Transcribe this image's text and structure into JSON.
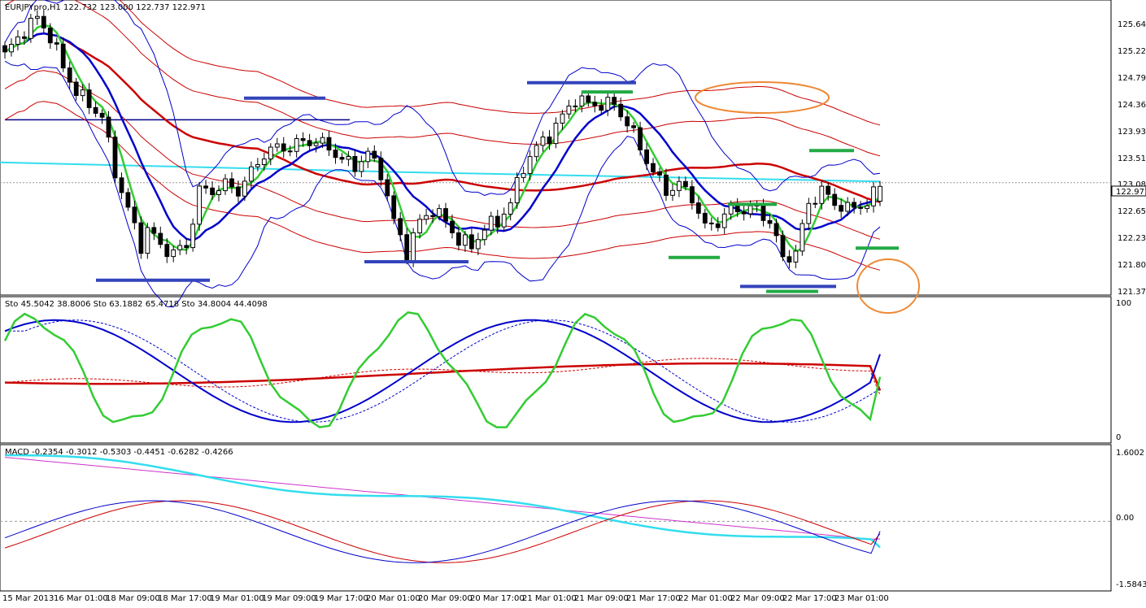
{
  "window": {
    "colors": {
      "background": "#ffffff",
      "frame": "#000000",
      "up_candle": "#ffffff",
      "down_candle": "#000000"
    }
  },
  "main_panel": {
    "label": "EURJPYpro,H1  122.732 123.000 122.737 122.971",
    "price_label": "122.971",
    "price_ticks": [
      "125.640",
      "125.220",
      "124.790",
      "124.360",
      "123.930",
      "123.510",
      "123.080",
      "122.650",
      "122.230",
      "121.800",
      "121.370"
    ],
    "colors": {
      "bb_thin": "#0000cc",
      "ma_thick_blue": "#0000cc",
      "ma_thick_red": "#cc0000",
      "ma_green": "#33cc33",
      "env_red": "#cc0000",
      "cyan_line": "#33ddee",
      "res_bar": "#3344bb",
      "sup_bar": "#22aa44",
      "annot": "#ee8833"
    }
  },
  "stoch_panel": {
    "label": "Sto 45.5042 38.8006  Sto 63.1882 65.4718  Sto 34.8004 44.4098",
    "ticks": [
      "100",
      "0"
    ]
  },
  "macd_panel": {
    "label": "MACD -0.2354 -0.3012 -0.5303 -0.4451 -0.6282 -0.4266",
    "ticks": [
      "1.6002",
      "0.00",
      "-1.5843"
    ]
  },
  "time_axis": {
    "labels": [
      "15 Mar 2013",
      "16 Mar 01:00",
      "18 Mar 09:00",
      "18 Mar 17:00",
      "19 Mar 01:00",
      "19 Mar 09:00",
      "19 Mar 17:00",
      "20 Mar 01:00",
      "20 Mar 09:00",
      "20 Mar 17:00",
      "21 Mar 01:00",
      "21 Mar 09:00",
      "21 Mar 17:00",
      "22 Mar 01:00",
      "22 Mar 09:00",
      "22 Mar 17:00",
      "23 Mar 01:00"
    ]
  },
  "chart_data": {
    "type": "candlestick",
    "symbol": "EURJPYpro",
    "timeframe": "H1",
    "ohlc": {
      "open": 122.732,
      "high": 123.0,
      "low": 122.737,
      "close": 122.971
    },
    "price_range": [
      121.25,
      125.95
    ],
    "x_slots": 136,
    "close_path": [
      [
        0,
        125.1
      ],
      [
        3,
        125.5
      ],
      [
        5,
        125.7
      ],
      [
        7,
        125.4
      ],
      [
        9,
        124.9
      ],
      [
        11,
        124.5
      ],
      [
        13,
        124.3
      ],
      [
        15,
        124.1
      ],
      [
        17,
        123.2
      ],
      [
        19,
        122.6
      ],
      [
        21,
        122.0
      ],
      [
        22,
        122.3
      ],
      [
        24,
        122.0
      ],
      [
        26,
        121.9
      ],
      [
        28,
        122.0
      ],
      [
        30,
        122.9
      ],
      [
        32,
        122.9
      ],
      [
        34,
        123.0
      ],
      [
        36,
        122.9
      ],
      [
        38,
        123.2
      ],
      [
        40,
        123.5
      ],
      [
        42,
        123.6
      ],
      [
        44,
        123.6
      ],
      [
        46,
        123.7
      ],
      [
        48,
        123.7
      ],
      [
        50,
        123.6
      ],
      [
        52,
        123.4
      ],
      [
        54,
        123.3
      ],
      [
        56,
        123.5
      ],
      [
        58,
        123.2
      ],
      [
        60,
        122.4
      ],
      [
        62,
        121.9
      ],
      [
        64,
        122.4
      ],
      [
        66,
        122.6
      ],
      [
        68,
        122.4
      ],
      [
        70,
        122.1
      ],
      [
        72,
        122.0
      ],
      [
        74,
        122.3
      ],
      [
        76,
        122.4
      ],
      [
        78,
        122.7
      ],
      [
        80,
        123.3
      ],
      [
        82,
        123.6
      ],
      [
        84,
        123.8
      ],
      [
        86,
        124.1
      ],
      [
        88,
        124.4
      ],
      [
        90,
        124.3
      ],
      [
        92,
        124.3
      ],
      [
        94,
        124.3
      ],
      [
        96,
        124.0
      ],
      [
        98,
        123.6
      ],
      [
        100,
        123.2
      ],
      [
        102,
        122.9
      ],
      [
        104,
        123.0
      ],
      [
        106,
        122.8
      ],
      [
        108,
        122.3
      ],
      [
        110,
        122.4
      ],
      [
        112,
        122.6
      ],
      [
        114,
        122.6
      ],
      [
        116,
        122.6
      ],
      [
        118,
        122.4
      ],
      [
        120,
        121.8
      ],
      [
        122,
        121.9
      ],
      [
        124,
        122.7
      ],
      [
        126,
        122.9
      ],
      [
        128,
        122.7
      ],
      [
        130,
        122.6
      ],
      [
        133,
        122.7
      ],
      [
        135,
        122.97
      ]
    ],
    "stochastic": [
      {
        "name": "Sto",
        "k": 45.5042,
        "d": 38.8006
      },
      {
        "name": "Sto",
        "k": 63.1882,
        "d": 65.4718
      },
      {
        "name": "Sto",
        "k": 34.8004,
        "d": 44.4098
      }
    ],
    "stochastic_range": [
      0,
      100
    ],
    "macd": {
      "values": [
        -0.2354,
        -0.3012,
        -0.5303,
        -0.4451,
        -0.6282,
        -0.4266
      ],
      "range": [
        -1.5843,
        1.6002
      ]
    }
  }
}
